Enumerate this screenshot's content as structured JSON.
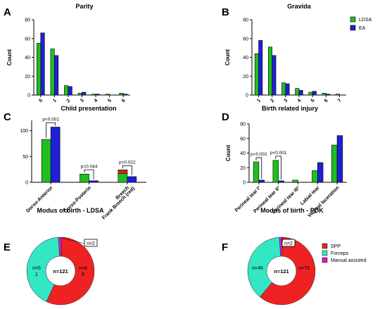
{
  "colors": {
    "ldsa": "#1fbf1f",
    "ea": "#1f1fd6",
    "spp": "#ee2222",
    "forceps": "#33e6c4",
    "manual": "#d01fc4",
    "breech_red": "#e02020"
  },
  "legend_top": [
    {
      "label": "LDSA",
      "color": "#1fbf1f"
    },
    {
      "label": "EA",
      "color": "#1f1fd6"
    }
  ],
  "legend_bottom": [
    {
      "label": "SPP",
      "color": "#ee2222"
    },
    {
      "label": "Forceps",
      "color": "#33e6c4"
    },
    {
      "label": "Manual assisted",
      "color": "#d01fc4"
    }
  ],
  "chart_data": [
    {
      "id": "A",
      "letter": "A",
      "type": "bar",
      "title": "Parity",
      "ylabel": "Count",
      "xlabel": "",
      "categories": [
        "0",
        "1",
        "2",
        "3",
        "4",
        "5",
        "6"
      ],
      "ylim": [
        0,
        80
      ],
      "yticks": [
        0,
        20,
        40,
        60,
        80
      ],
      "series": [
        {
          "name": "LDSA",
          "values": [
            55,
            49,
            10,
            2,
            1,
            1,
            2
          ]
        },
        {
          "name": "EA",
          "values": [
            66,
            42,
            9,
            3,
            1,
            0,
            1
          ]
        }
      ],
      "rotate_labels": true
    },
    {
      "id": "B",
      "letter": "B",
      "type": "bar",
      "title": "Gravida",
      "ylabel": "Count",
      "xlabel": "",
      "categories": [
        "1",
        "2",
        "3",
        "4",
        "5",
        "6",
        "7"
      ],
      "ylim": [
        0,
        80
      ],
      "yticks": [
        0,
        20,
        40,
        60,
        80
      ],
      "series": [
        {
          "name": "LDSA",
          "values": [
            44,
            51,
            13,
            7,
            3,
            2,
            1
          ]
        },
        {
          "name": "EA",
          "values": [
            58,
            42,
            12,
            5,
            4,
            1,
            0
          ]
        }
      ],
      "rotate_labels": true
    },
    {
      "id": "C",
      "letter": "C",
      "type": "bar",
      "title": "Child presentation",
      "ylabel": "",
      "xlabel": "",
      "categories": [
        "Dorso-Anterior",
        "Dorso-Posterio",
        "Breech\nFrank Breech (red)"
      ],
      "ylim": [
        0,
        120
      ],
      "yticks": [
        0,
        50,
        100
      ],
      "series": [
        {
          "name": "LDSA",
          "values": [
            83,
            16,
            24
          ]
        },
        {
          "name": "EA",
          "values": [
            107,
            3,
            11
          ]
        }
      ],
      "breech_red_portion": {
        "category": 2,
        "from": 17,
        "to": 24
      },
      "annotations": [
        {
          "text": "p<0.001",
          "category": 0
        },
        {
          "text": "p=0.044",
          "category": 1
        },
        {
          "text": "p=0.022",
          "category": 2
        }
      ],
      "rotate_labels": true
    },
    {
      "id": "D",
      "letter": "D",
      "type": "bar",
      "title": "Birth related injury",
      "ylabel": "Count",
      "xlabel": "",
      "categories": [
        "Perineal tear I°",
        "Perineal tear II°",
        "Perineal tear III°",
        "Labial tear",
        "Vaginal laceration"
      ],
      "ylim": [
        0,
        80
      ],
      "yticks": [
        0,
        20,
        40,
        60,
        80
      ],
      "series": [
        {
          "name": "LDSA",
          "values": [
            28,
            30,
            3,
            16,
            51
          ]
        },
        {
          "name": "EA",
          "values": [
            3,
            2,
            0,
            27,
            64
          ]
        }
      ],
      "annotations": [
        {
          "text": "p<0.001",
          "category": 0
        },
        {
          "text": "p<0.001",
          "category": 1
        }
      ],
      "rotate_labels": true
    },
    {
      "id": "E",
      "letter": "E",
      "type": "pie",
      "title": "Modus of birth - LDSA",
      "center_label": "n=121",
      "slices": [
        {
          "name": "SPP",
          "value": 68,
          "label": "n=6\n8"
        },
        {
          "name": "Forceps",
          "value": 51,
          "label": "n=5\n1"
        },
        {
          "name": "Manual assisted",
          "value": 2,
          "label": "n=2"
        }
      ]
    },
    {
      "id": "F",
      "letter": "F",
      "type": "pie",
      "title": "Modus of birth - PDK",
      "center_label": "n=121",
      "slices": [
        {
          "name": "SPP",
          "value": 73,
          "label": "n=73"
        },
        {
          "name": "Forceps",
          "value": 46,
          "label": "n=46"
        },
        {
          "name": "Manual assisted",
          "value": 2,
          "label": "n=2"
        }
      ]
    }
  ]
}
